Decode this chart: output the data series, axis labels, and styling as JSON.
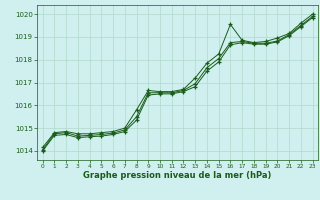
{
  "xlabel": "Graphe pression niveau de la mer (hPa)",
  "ylim": [
    1013.6,
    1020.4
  ],
  "xlim": [
    -0.5,
    23.5
  ],
  "yticks": [
    1014,
    1015,
    1016,
    1017,
    1018,
    1019,
    1020
  ],
  "xticks": [
    0,
    1,
    2,
    3,
    4,
    5,
    6,
    7,
    8,
    9,
    10,
    11,
    12,
    13,
    14,
    15,
    16,
    17,
    18,
    19,
    20,
    21,
    22,
    23
  ],
  "bg_color": "#cff0ee",
  "grid_color": "#b0d8cc",
  "line_color": "#1a5c1a",
  "line1": [
    1014.15,
    1014.8,
    1014.85,
    1014.75,
    1014.75,
    1014.8,
    1014.85,
    1015.0,
    1015.8,
    1016.65,
    1016.6,
    1016.6,
    1016.7,
    1017.2,
    1017.85,
    1018.25,
    1019.55,
    1018.85,
    1018.75,
    1018.8,
    1018.95,
    1019.15,
    1019.6,
    1020.0
  ],
  "line2": [
    1014.05,
    1014.75,
    1014.8,
    1014.65,
    1014.68,
    1014.72,
    1014.78,
    1014.92,
    1015.5,
    1016.55,
    1016.55,
    1016.55,
    1016.65,
    1016.95,
    1017.65,
    1018.05,
    1018.75,
    1018.8,
    1018.72,
    1018.72,
    1018.82,
    1019.1,
    1019.5,
    1019.9
  ],
  "line3": [
    1014.0,
    1014.68,
    1014.72,
    1014.58,
    1014.62,
    1014.65,
    1014.72,
    1014.85,
    1015.35,
    1016.45,
    1016.5,
    1016.5,
    1016.6,
    1016.82,
    1017.5,
    1017.9,
    1018.65,
    1018.75,
    1018.68,
    1018.68,
    1018.78,
    1019.05,
    1019.45,
    1019.85
  ]
}
